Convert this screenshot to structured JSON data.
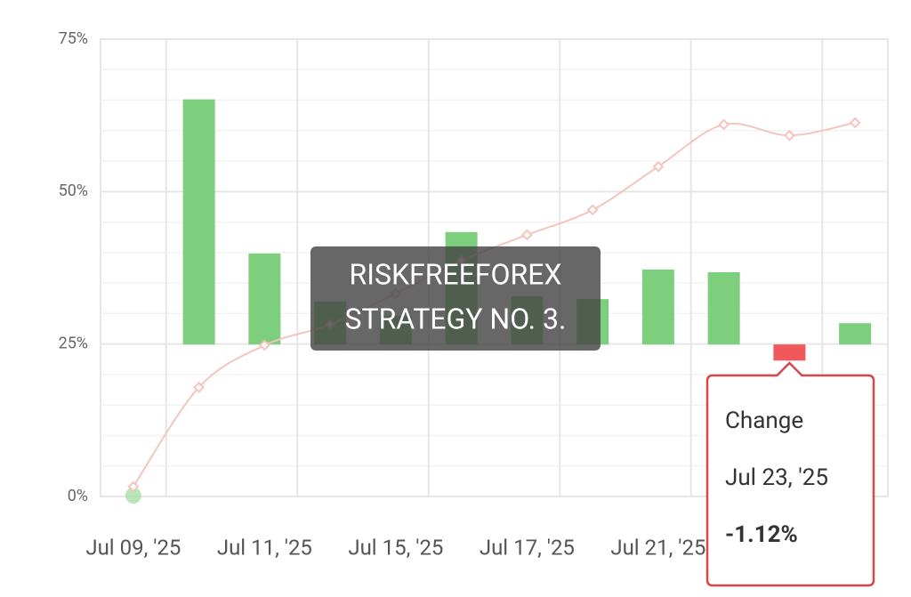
{
  "chart_data": {
    "type": "combo",
    "categories": [
      "Jul 09, '25",
      null,
      "Jul 11, '25",
      null,
      "Jul 15, '25",
      null,
      "Jul 17, '25",
      null,
      "Jul 21, '25",
      null,
      null,
      null
    ],
    "series": [
      {
        "type": "bar",
        "axis": "y2",
        "color": "#7dce7d",
        "negative_color": "#f0585a",
        "values": [
          null,
          17.1,
          6.35,
          3.0,
          2.0,
          7.84,
          3.36,
          3.17,
          5.23,
          5.04,
          -1.12,
          1.49
        ]
      },
      {
        "type": "line",
        "color": "#f5c4bf",
        "start_marker_color": "#a8dea8",
        "values": [
          1.6,
          17.9,
          24.8,
          28.2,
          33.3,
          38.7,
          42.9,
          47.0,
          54.1,
          61.0,
          59.2,
          61.3
        ]
      }
    ],
    "ylim": [
      0,
      75
    ],
    "yticks": [
      {
        "value": 0,
        "label": "0%"
      },
      {
        "value": 25,
        "label": "25%"
      },
      {
        "value": 50,
        "label": "50%"
      },
      {
        "value": 75,
        "label": "75%"
      }
    ],
    "y2lim": [
      -10.6,
      21.3
    ],
    "grid": true,
    "watermark": [
      "RISKFREEFOREX",
      "STRATEGY NO. 3."
    ],
    "tooltip": {
      "title": "Change",
      "x": "Jul 23, '25",
      "value": {
        "value": -1.12,
        "label": "-1.12%"
      }
    }
  }
}
